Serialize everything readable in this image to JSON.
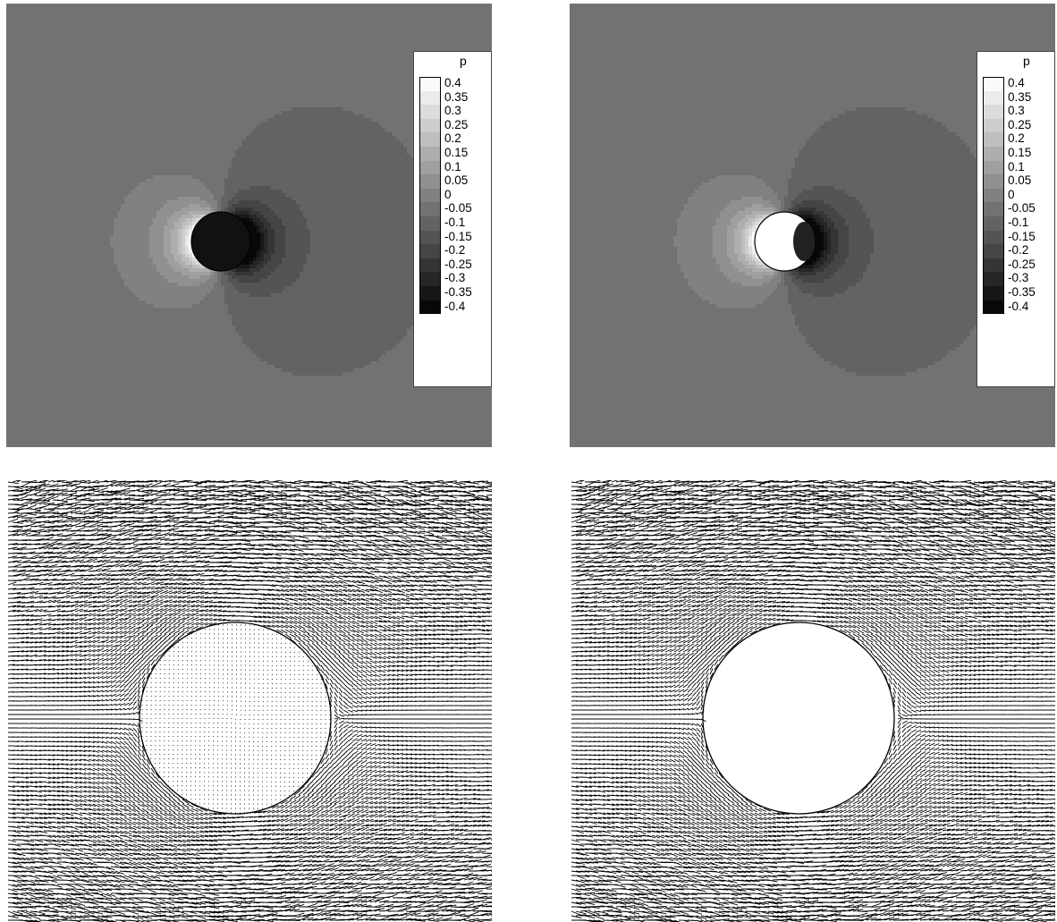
{
  "chart_data": [
    {
      "type": "heatmap",
      "variable": "p",
      "legend_title": "p",
      "legend_placement": "right",
      "levels": [
        0.4,
        0.35,
        0.3,
        0.25,
        0.2,
        0.15,
        0.1,
        0.05,
        0,
        -0.05,
        -0.1,
        -0.15,
        -0.2,
        -0.25,
        -0.3,
        -0.35,
        -0.4
      ],
      "level_labels": [
        "0.4",
        "0.35",
        "0.3",
        "0.25",
        "0.2",
        "0.15",
        "0.1",
        "0.05",
        "0",
        "-0.05",
        "-0.1",
        "-0.15",
        "-0.2",
        "-0.25",
        "-0.3",
        "-0.35",
        "-0.4"
      ],
      "colormap": "grayscale",
      "interior": "low-pressure"
    },
    {
      "type": "heatmap",
      "variable": "p",
      "legend_title": "p",
      "legend_placement": "right",
      "levels": [
        0.4,
        0.35,
        0.3,
        0.25,
        0.2,
        0.15,
        0.1,
        0.05,
        0,
        -0.05,
        -0.1,
        -0.15,
        -0.2,
        -0.25,
        -0.3,
        -0.35,
        -0.4
      ],
      "level_labels": [
        "0.4",
        "0.35",
        "0.3",
        "0.25",
        "0.2",
        "0.15",
        "0.1",
        "0.05",
        "0",
        "-0.05",
        "-0.1",
        "-0.15",
        "-0.2",
        "-0.25",
        "-0.3",
        "-0.35",
        "-0.4"
      ],
      "colormap": "grayscale",
      "interior": "high-pressure"
    },
    {
      "type": "scatter",
      "plot": "velocity-vectors",
      "interior": "circulating-vectors"
    },
    {
      "type": "scatter",
      "plot": "velocity-vectors",
      "interior": "empty"
    }
  ]
}
